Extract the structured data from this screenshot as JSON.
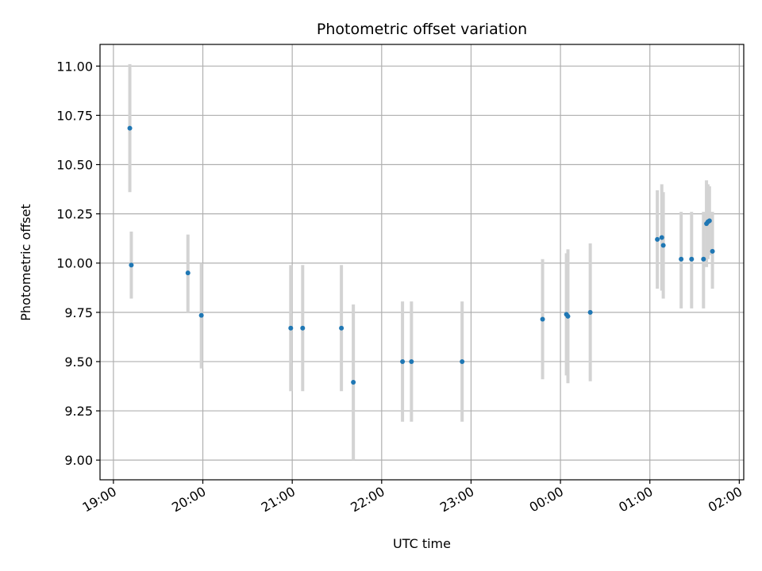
{
  "chart_data": {
    "type": "scatter",
    "title": "Photometric offset variation",
    "xlabel": "UTC time",
    "ylabel": "Photometric offset",
    "x_ticks": [
      "19:00",
      "20:00",
      "21:00",
      "22:00",
      "23:00",
      "00:00",
      "01:00",
      "02:00"
    ],
    "y_ticks": [
      "9.00",
      "9.25",
      "9.50",
      "9.75",
      "10.00",
      "10.25",
      "10.50",
      "10.75",
      "11.00"
    ],
    "ylim": [
      8.9,
      11.11
    ],
    "xlim_hours": [
      18.85,
      26.05
    ],
    "grid": true,
    "point_color": "#1f77b4",
    "errorbar_color": "#d3d3d3",
    "series": [
      {
        "points": [
          {
            "time": "19:11",
            "y": 10.685,
            "lo": 10.36,
            "hi": 11.01
          },
          {
            "time": "19:12",
            "y": 9.99,
            "lo": 9.82,
            "hi": 10.16
          },
          {
            "time": "19:50",
            "y": 9.95,
            "lo": 9.75,
            "hi": 10.145
          },
          {
            "time": "19:59",
            "y": 9.735,
            "lo": 9.465,
            "hi": 10.0
          },
          {
            "time": "20:59",
            "y": 9.67,
            "lo": 9.35,
            "hi": 9.99
          },
          {
            "time": "21:07",
            "y": 9.67,
            "lo": 9.35,
            "hi": 9.99
          },
          {
            "time": "21:33",
            "y": 9.67,
            "lo": 9.35,
            "hi": 9.99
          },
          {
            "time": "21:41",
            "y": 9.395,
            "lo": 9.0,
            "hi": 9.79
          },
          {
            "time": "22:14",
            "y": 9.5,
            "lo": 9.195,
            "hi": 9.805
          },
          {
            "time": "22:20",
            "y": 9.5,
            "lo": 9.195,
            "hi": 9.805
          },
          {
            "time": "22:54",
            "y": 9.5,
            "lo": 9.195,
            "hi": 9.805
          },
          {
            "time": "23:48",
            "y": 9.715,
            "lo": 9.41,
            "hi": 10.02
          },
          {
            "time": "00:04",
            "y": 9.74,
            "lo": 9.43,
            "hi": 10.05
          },
          {
            "time": "00:05",
            "y": 9.73,
            "lo": 9.39,
            "hi": 10.07
          },
          {
            "time": "00:20",
            "y": 9.75,
            "lo": 9.4,
            "hi": 10.1
          },
          {
            "time": "01:05",
            "y": 10.12,
            "lo": 9.87,
            "hi": 10.37
          },
          {
            "time": "01:08",
            "y": 10.13,
            "lo": 9.86,
            "hi": 10.4
          },
          {
            "time": "01:09",
            "y": 10.09,
            "lo": 9.82,
            "hi": 10.36
          },
          {
            "time": "01:21",
            "y": 10.02,
            "lo": 9.77,
            "hi": 10.26
          },
          {
            "time": "01:28",
            "y": 10.02,
            "lo": 9.77,
            "hi": 10.26
          },
          {
            "time": "01:36",
            "y": 10.02,
            "lo": 9.77,
            "hi": 10.26
          },
          {
            "time": "01:38",
            "y": 10.2,
            "lo": 9.98,
            "hi": 10.42
          },
          {
            "time": "01:39",
            "y": 10.21,
            "lo": 10.02,
            "hi": 10.4
          },
          {
            "time": "01:40",
            "y": 10.215,
            "lo": 10.04,
            "hi": 10.39
          },
          {
            "time": "01:42",
            "y": 10.06,
            "lo": 9.87,
            "hi": 10.26
          }
        ]
      }
    ]
  }
}
